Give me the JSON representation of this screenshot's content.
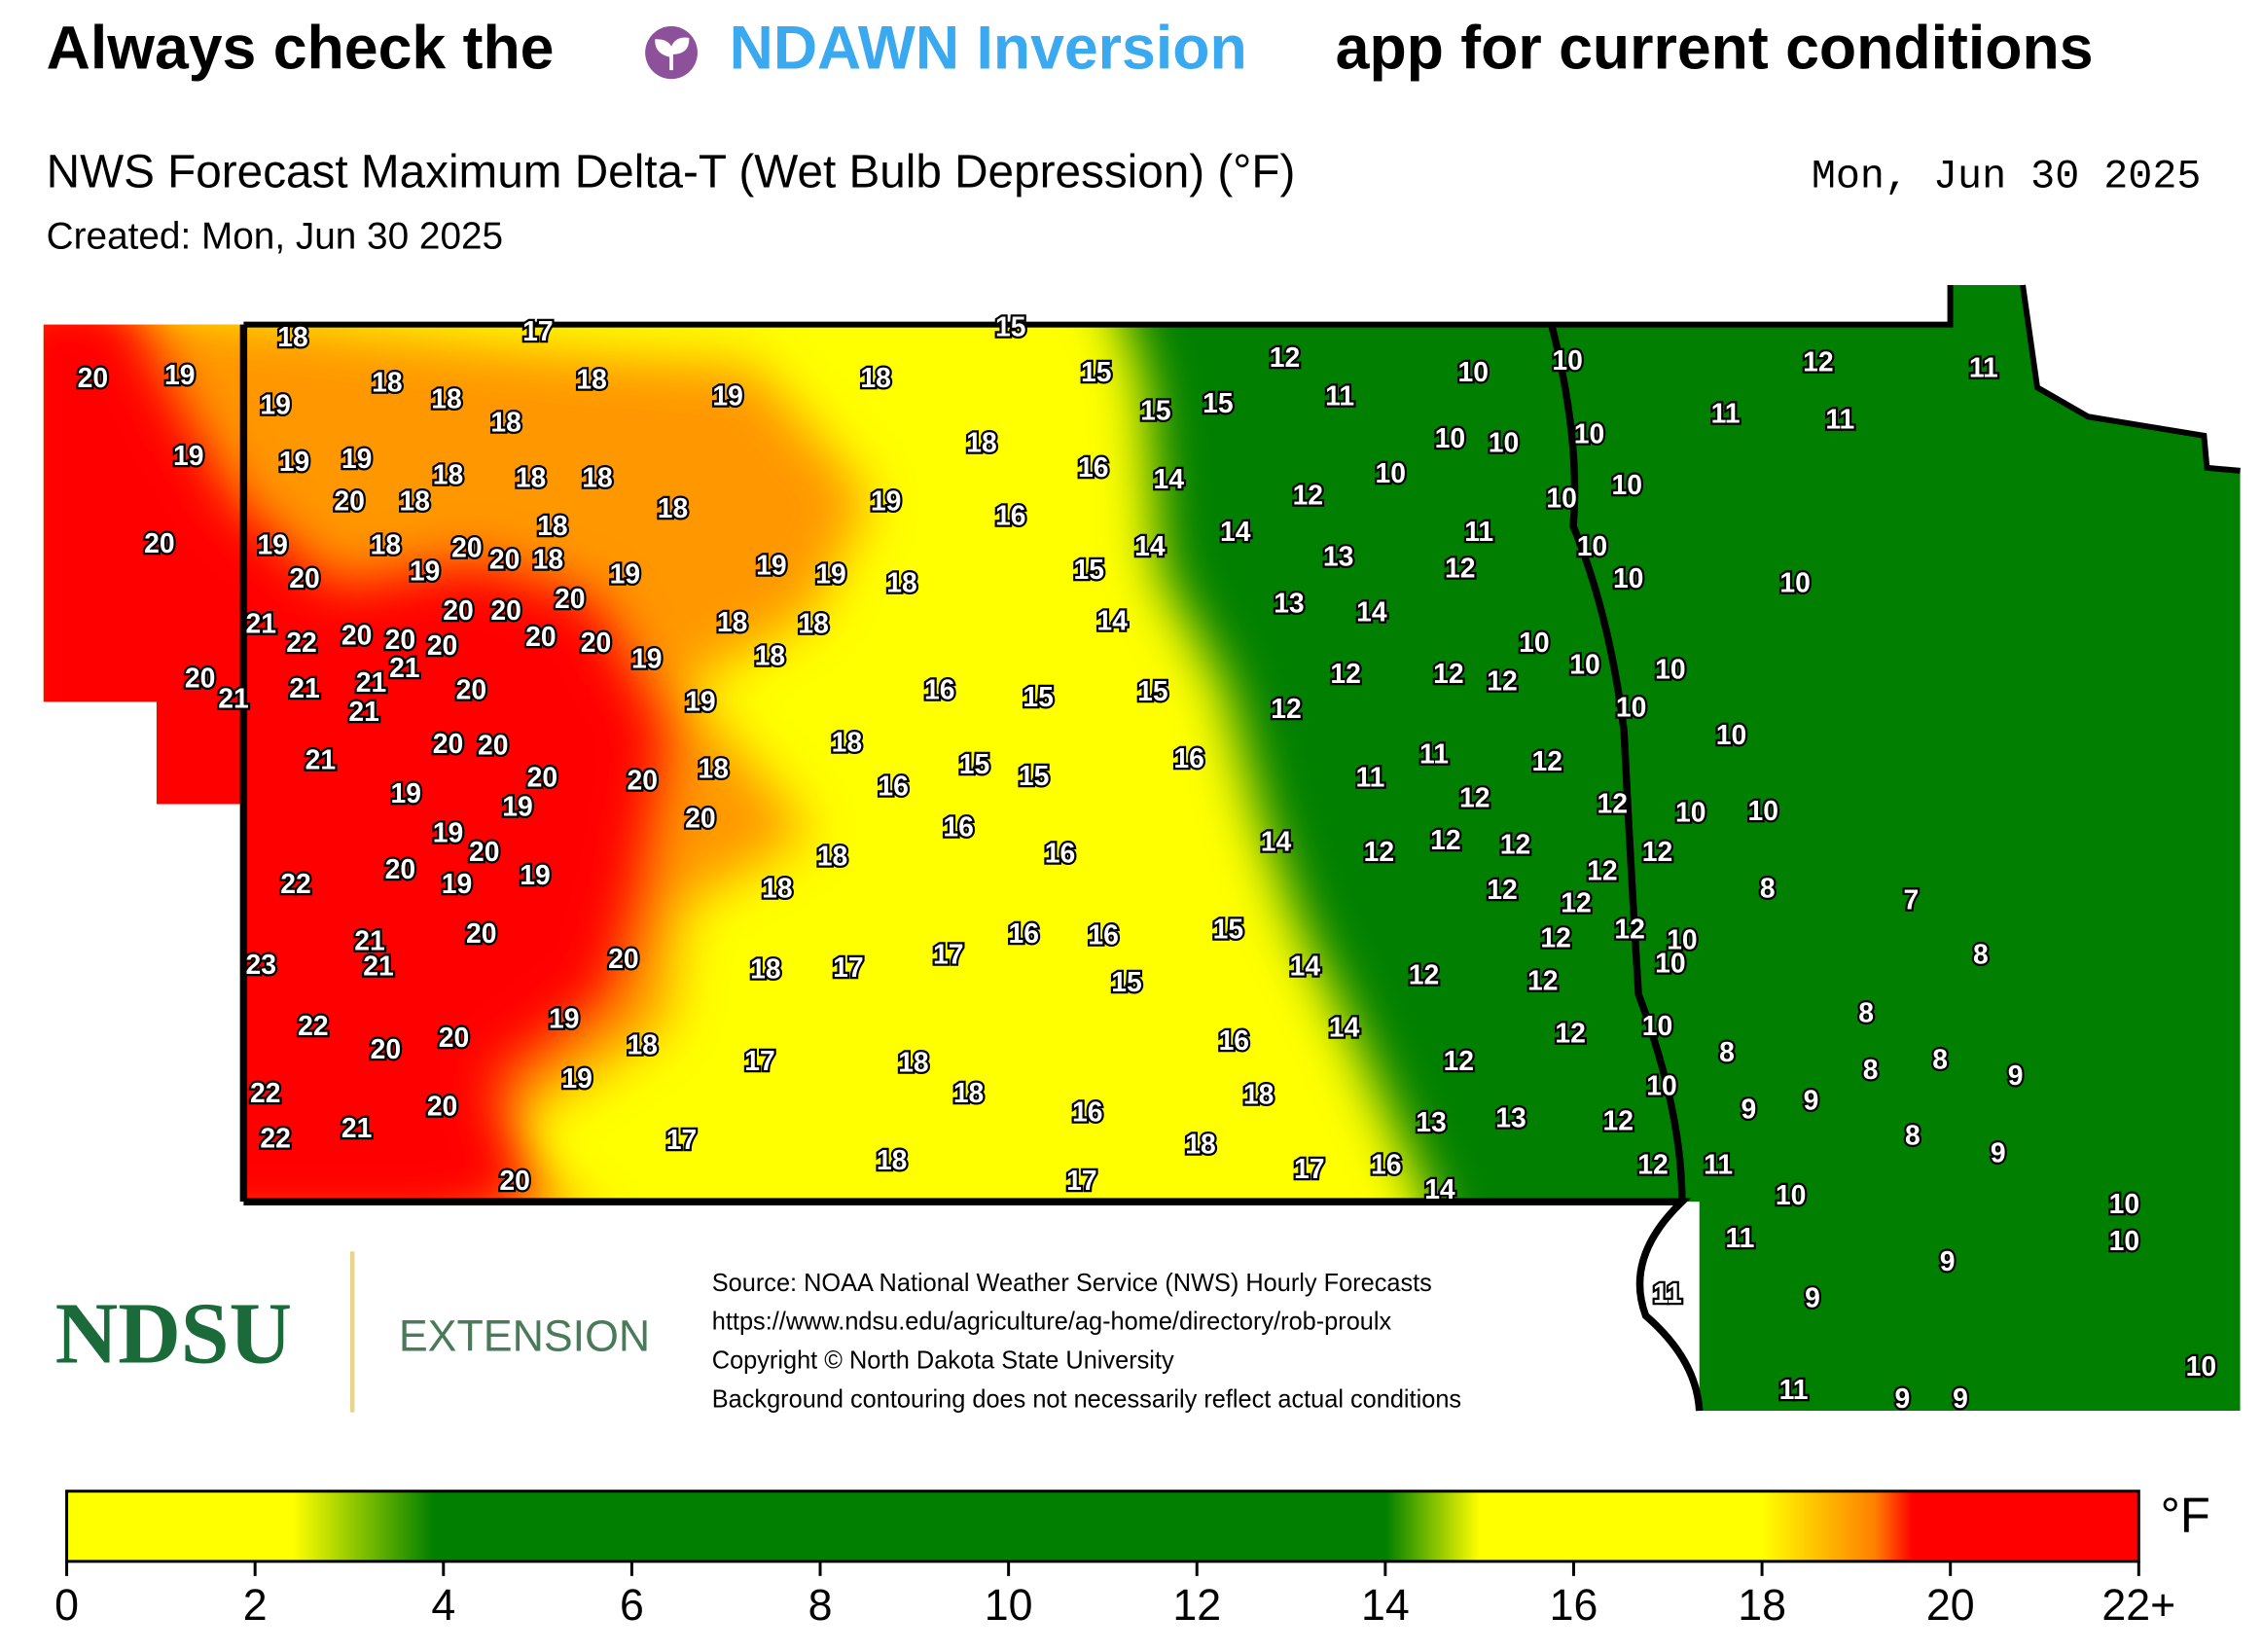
{
  "header": {
    "title": {
      "before": "Always check the",
      "link": "NDAWN Inversion",
      "after": "app for current conditions"
    },
    "subtitle": "NWS Forecast Maximum Delta-T (Wet Bulb Depression) (°F)",
    "date": "Mon, Jun 30 2025",
    "created": "Created: Mon, Jun 30 2025"
  },
  "map": {
    "labels": [
      20,
      19,
      18,
      17,
      15,
      19,
      18,
      18,
      18,
      19,
      18,
      15,
      12,
      10,
      10,
      12,
      11,
      19,
      18,
      19,
      19,
      18,
      15,
      15,
      11,
      11,
      11,
      10,
      10,
      10,
      18,
      18,
      18,
      20,
      18,
      18,
      19,
      16,
      14,
      16,
      12,
      10,
      10,
      10,
      20,
      19,
      18,
      20,
      20,
      18,
      18,
      19,
      19,
      19,
      19,
      18,
      15,
      14,
      14,
      13,
      11,
      12,
      10,
      10,
      10,
      20,
      20,
      20,
      20,
      18,
      18,
      14,
      13,
      14,
      21,
      22,
      20,
      20,
      20,
      20,
      20,
      19,
      18,
      10,
      10,
      10,
      20,
      21,
      21,
      21,
      21,
      21,
      20,
      19,
      16,
      15,
      15,
      12,
      12,
      12,
      12,
      10,
      10,
      21,
      20,
      20,
      20,
      20,
      18,
      18,
      16,
      15,
      15,
      16,
      11,
      11,
      12,
      19,
      19,
      20,
      16,
      12,
      12,
      10,
      10,
      19,
      20,
      20,
      19,
      19,
      22,
      18,
      18,
      16,
      14,
      12,
      12,
      12,
      12,
      12,
      12,
      12,
      8,
      7,
      21,
      20,
      21,
      23,
      20,
      18,
      17,
      17,
      16,
      16,
      15,
      12,
      12,
      10,
      10,
      8,
      15,
      14,
      12,
      12,
      22,
      20,
      20,
      19,
      18,
      16,
      14,
      12,
      10,
      8,
      22,
      19,
      17,
      18,
      18,
      12,
      8,
      8,
      8,
      9,
      10,
      22,
      21,
      20,
      17,
      16,
      18,
      18,
      13,
      13,
      12,
      9,
      9,
      8,
      9,
      20,
      18,
      17,
      17,
      16,
      14,
      12,
      11,
      10,
      10,
      11,
      10,
      9,
      11,
      9,
      10,
      11,
      9,
      9
    ]
  },
  "footer": {
    "logo": "NDSU",
    "extension": "EXTENSION",
    "source": [
      "Source: NOAA National Weather Service (NWS) Hourly Forecasts",
      "https://www.ndsu.edu/agriculture/ag-home/directory/rob-proulx",
      "Copyright © North Dakota State University",
      "Background contouring does not necessarily reflect actual conditions"
    ]
  },
  "colorbar": {
    "lim": [
      0,
      22
    ],
    "unit": "°F",
    "ticks": [
      0,
      2,
      4,
      6,
      8,
      10,
      12,
      14,
      16,
      18,
      20,
      {
        "value": 22,
        "label": "22+"
      }
    ],
    "stops": [
      {
        "value": 0,
        "color": "#ffff00"
      },
      {
        "value": 2.4,
        "color": "#ffff00"
      },
      {
        "value": 3.9,
        "color": "#007f00"
      },
      {
        "value": 14,
        "color": "#007f00"
      },
      {
        "value": 15,
        "color": "#ffff00"
      },
      {
        "value": 18,
        "color": "#ffff00"
      },
      {
        "value": 19.2,
        "color": "#ff8000"
      },
      {
        "value": 19.6,
        "color": "#ff0000"
      },
      {
        "value": 22,
        "color": "#ff0000"
      }
    ]
  }
}
